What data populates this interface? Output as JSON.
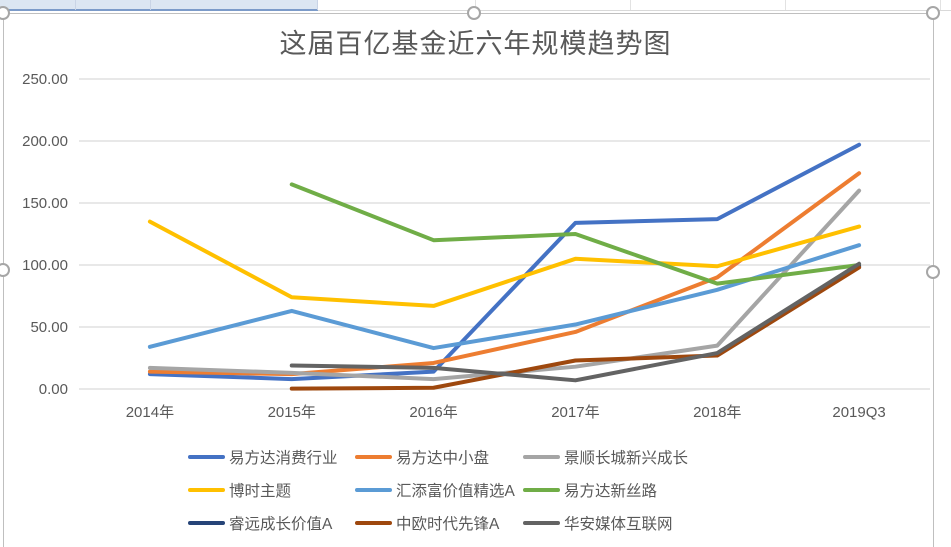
{
  "chart_data": {
    "type": "line",
    "title": "这届百亿基金近六年规模趋势图",
    "categories": [
      "2014年",
      "2015年",
      "2016年",
      "2017年",
      "2018年",
      "2019Q3"
    ],
    "series": [
      {
        "name": "易方达消费行业",
        "color": "#4472C4",
        "values": [
          12,
          8,
          14,
          134,
          137,
          197
        ]
      },
      {
        "name": "易方达中小盘",
        "color": "#ED7D31",
        "values": [
          14,
          12,
          21,
          46,
          90,
          174
        ]
      },
      {
        "name": "景顺长城新兴成长",
        "color": "#A5A5A5",
        "values": [
          17,
          13,
          8,
          18,
          35,
          160
        ]
      },
      {
        "name": "博时主题",
        "color": "#FFC000",
        "values": [
          135,
          74,
          67,
          105,
          99,
          131
        ]
      },
      {
        "name": "汇添富价值精选A",
        "color": "#5B9BD5",
        "values": [
          34,
          63,
          33,
          52,
          80,
          116
        ]
      },
      {
        "name": "易方达新丝路",
        "color": "#70AD47",
        "values": [
          null,
          165,
          120,
          125,
          85,
          100
        ]
      },
      {
        "name": "睿远成长价值A",
        "color": "#264478",
        "values": [
          null,
          null,
          null,
          null,
          28,
          99
        ]
      },
      {
        "name": "中欧时代先锋A",
        "color": "#9E480E",
        "values": [
          null,
          0.3,
          1,
          23,
          27,
          98
        ]
      },
      {
        "name": "华安媒体互联网",
        "color": "#636363",
        "values": [
          null,
          19,
          17,
          7,
          29,
          101
        ]
      }
    ],
    "ylim": [
      0,
      250
    ],
    "ytick_step": 50,
    "ytick_labels": [
      "0.00",
      "50.00",
      "100.00",
      "150.00",
      "200.00",
      "250.00"
    ],
    "grid": true,
    "legend_position": "bottom"
  },
  "theme": {
    "text_color": "#595959",
    "gridline_color": "#d9d9d9",
    "background": "#ffffff"
  }
}
